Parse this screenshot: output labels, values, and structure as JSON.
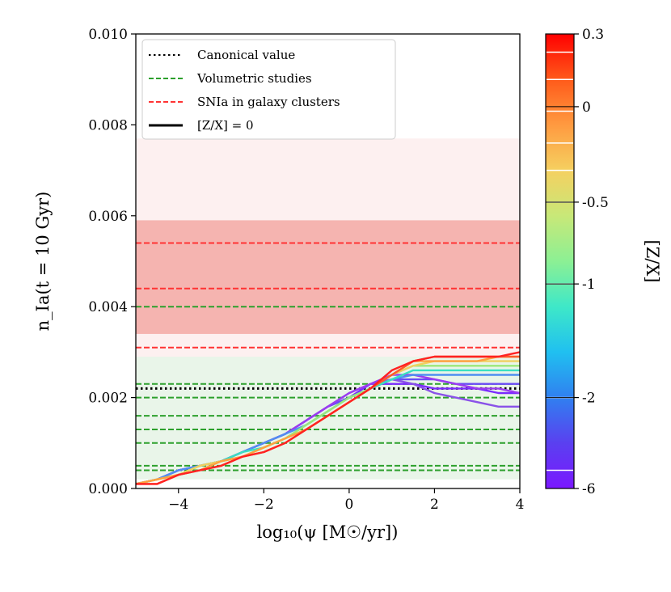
{
  "chart_data": {
    "type": "line",
    "xlabel": "log₁₀(ψ [M☉/yr])",
    "ylabel": "n_Ia(t = 10 Gyr)",
    "xlim": [
      -5,
      4
    ],
    "ylim": [
      0.0,
      0.01
    ],
    "x_ticks": [
      -4,
      -2,
      0,
      2,
      4
    ],
    "x_tick_labels": [
      "−4",
      "−2",
      "0",
      "2",
      "4"
    ],
    "y_ticks": [
      0.0,
      0.002,
      0.004,
      0.006,
      0.008,
      0.01
    ],
    "y_tick_labels": [
      "0.000",
      "0.002",
      "0.004",
      "0.006",
      "0.008",
      "0.010"
    ],
    "legend": {
      "position": "top-left",
      "entries": [
        {
          "label": "Canonical value",
          "style": "dotted",
          "color": "#000000"
        },
        {
          "label": "Volumetric studies",
          "style": "dashed",
          "color": "#2ca02c"
        },
        {
          "label": "SNIa in galaxy clusters",
          "style": "dashed",
          "color": "#ff3333"
        },
        {
          "label": "[Z/X] = 0",
          "style": "solid",
          "color": "#000000"
        }
      ]
    },
    "canonical_value": 0.0022,
    "volumetric_values": [
      0.0004,
      0.0005,
      0.001,
      0.0013,
      0.0016,
      0.002,
      0.0023,
      0.004
    ],
    "volumetric_band": [
      0.0002,
      0.0029
    ],
    "cluster_values": [
      0.0031,
      0.0044,
      0.0054
    ],
    "cluster_bands": [
      {
        "range": [
          0.0034,
          0.0059
        ],
        "alpha": 0.35
      },
      {
        "range": [
          0.0029,
          0.0077
        ],
        "alpha": 0.08
      }
    ],
    "x": [
      -5,
      -4.5,
      -4,
      -3.5,
      -3,
      -2.5,
      -2,
      -1.5,
      -1,
      -0.5,
      0,
      0.5,
      1,
      1.5,
      2,
      2.5,
      3,
      3.5,
      4
    ],
    "series": [
      {
        "name": "[Z/X] = -6",
        "color": "#7b2bff",
        "values": [
          0.0001,
          0.0002,
          0.0004,
          0.0005,
          0.0006,
          0.0008,
          0.001,
          0.0012,
          0.0015,
          0.0018,
          0.002,
          0.0023,
          0.0023,
          0.0023,
          0.0022,
          0.0022,
          0.0022,
          0.0021,
          0.0021
        ]
      },
      {
        "name": "[Z/X] = -5.5",
        "color": "#6a4cf5",
        "values": [
          0.0001,
          0.0002,
          0.0004,
          0.0005,
          0.0006,
          0.0008,
          0.001,
          0.0012,
          0.0015,
          0.0018,
          0.002,
          0.0022,
          0.0024,
          0.0024,
          0.0024,
          0.0023,
          0.0023,
          0.0023,
          0.0023
        ]
      },
      {
        "name": "[Z/X] = -4",
        "color": "#8a52e8",
        "values": [
          0.0001,
          0.0002,
          0.0004,
          0.0005,
          0.0006,
          0.0008,
          0.001,
          0.0012,
          0.0015,
          0.0018,
          0.0021,
          0.0023,
          0.0024,
          0.0023,
          0.0021,
          0.002,
          0.0019,
          0.0018,
          0.0018
        ]
      },
      {
        "name": "[Z/X] = -3",
        "color": "#9b3cf0",
        "values": [
          0.0001,
          0.0002,
          0.0004,
          0.0005,
          0.0006,
          0.0008,
          0.001,
          0.0012,
          0.0015,
          0.0018,
          0.0021,
          0.0023,
          0.0025,
          0.0025,
          0.0024,
          0.0023,
          0.0022,
          0.0022,
          0.0021
        ]
      },
      {
        "name": "[Z/X] = -2",
        "color": "#4f8ff0",
        "values": [
          0.0001,
          0.0002,
          0.0004,
          0.0005,
          0.0006,
          0.0008,
          0.001,
          0.0012,
          0.0014,
          0.0017,
          0.002,
          0.0022,
          0.0024,
          0.0025,
          0.0025,
          0.0025,
          0.0025,
          0.0025,
          0.0025
        ]
      },
      {
        "name": "[Z/X] = -1",
        "color": "#3ae0c0",
        "values": [
          0.0001,
          0.0002,
          0.0003,
          0.0005,
          0.0006,
          0.0008,
          0.0009,
          0.0011,
          0.0014,
          0.0017,
          0.002,
          0.0022,
          0.0024,
          0.0026,
          0.0026,
          0.0026,
          0.0026,
          0.0026,
          0.0026
        ]
      },
      {
        "name": "[Z/X] = -0.5",
        "color": "#9be87a",
        "values": [
          0.0001,
          0.0002,
          0.0003,
          0.0005,
          0.0006,
          0.0007,
          0.0009,
          0.0011,
          0.0014,
          0.0017,
          0.002,
          0.0022,
          0.0025,
          0.0027,
          0.0027,
          0.0027,
          0.0027,
          0.0027,
          0.0027
        ]
      },
      {
        "name": "[Z/X] = -0.3",
        "color": "#f0d060",
        "values": [
          0.0001,
          0.0002,
          0.0003,
          0.0005,
          0.0006,
          0.0007,
          0.0009,
          0.0011,
          0.0013,
          0.0016,
          0.0019,
          0.0022,
          0.0025,
          0.0027,
          0.0028,
          0.0028,
          0.0028,
          0.0028,
          0.0028
        ]
      },
      {
        "name": "[Z/X] = -0.1",
        "color": "#ffa040",
        "values": [
          0.0001,
          0.0002,
          0.0003,
          0.0004,
          0.0006,
          0.0007,
          0.0009,
          0.0011,
          0.0013,
          0.0016,
          0.0019,
          0.0022,
          0.0025,
          0.0028,
          0.0028,
          0.0028,
          0.0028,
          0.0029,
          0.0029
        ]
      },
      {
        "name": "[Z/X] = 0",
        "color": "#ff5a2a",
        "values": [
          0.0001,
          0.0001,
          0.0003,
          0.0004,
          0.0005,
          0.0007,
          0.0008,
          0.001,
          0.0013,
          0.0016,
          0.0019,
          0.0022,
          0.0025,
          0.0028,
          0.0029,
          0.0029,
          0.0029,
          0.0029,
          0.0029
        ]
      },
      {
        "name": "[Z/X] = 0.3",
        "color": "#ff2222",
        "values": [
          0.0001,
          0.0001,
          0.0003,
          0.0004,
          0.0005,
          0.0007,
          0.0008,
          0.001,
          0.0013,
          0.0016,
          0.0019,
          0.0022,
          0.0026,
          0.0028,
          0.0029,
          0.0029,
          0.0029,
          0.0029,
          0.003
        ]
      }
    ],
    "colorbar": {
      "label": "[Z/X]",
      "tick_labels": [
        "0.3",
        "0",
        "-0.5",
        "-1",
        "-2",
        "-6"
      ],
      "tick_fractions": [
        0.0,
        0.16,
        0.37,
        0.55,
        0.8,
        1.0
      ],
      "colors_top_to_bottom": [
        "#ff0000",
        "#ff5a1a",
        "#ff9a40",
        "#f5d060",
        "#c8e878",
        "#8cf094",
        "#3ee8c8",
        "#20c0f0",
        "#3080f0",
        "#5a40f0",
        "#7b18ff"
      ],
      "white_lines": [
        0.04,
        0.1,
        0.17,
        0.24,
        0.3,
        0.37,
        0.55,
        0.8,
        0.96
      ]
    }
  }
}
